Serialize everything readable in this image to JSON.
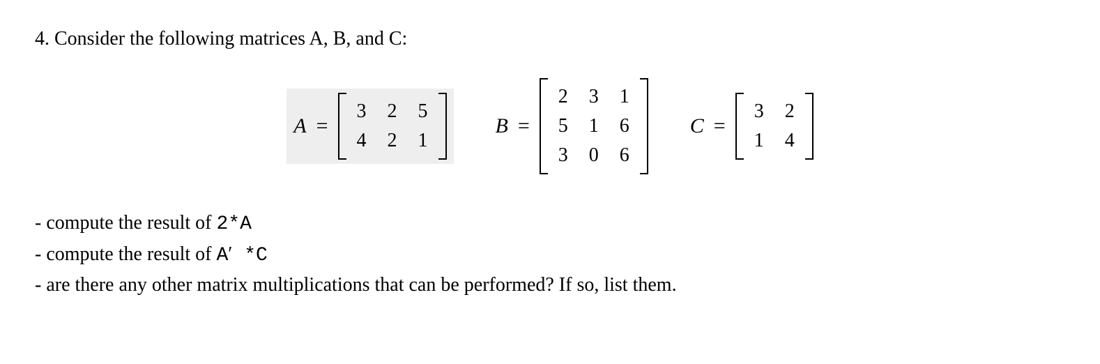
{
  "problem": {
    "number": "4.",
    "intro": "Consider the following matrices A, B, and C:"
  },
  "matrices": {
    "A": {
      "label": "A",
      "equals": "=",
      "rows": [
        [
          "3",
          "2",
          "5"
        ],
        [
          "4",
          "2",
          "1"
        ]
      ],
      "highlight_bg": "#eeeeee"
    },
    "B": {
      "label": "B",
      "equals": "=",
      "rows": [
        [
          "2",
          "3",
          "1"
        ],
        [
          "5",
          "1",
          "6"
        ],
        [
          "3",
          "0",
          "6"
        ]
      ]
    },
    "C": {
      "label": "C",
      "equals": "=",
      "rows": [
        [
          "3",
          "2"
        ],
        [
          "1",
          "4"
        ]
      ]
    }
  },
  "subquestions": {
    "q1_prefix": "- compute the result of ",
    "q1_code": "2*A",
    "q2_prefix": "- compute the result of ",
    "q2_expr_A": "A",
    "q2_expr_prime": "′",
    "q2_expr_rest": " *C",
    "q3": "- are there any other matrix multiplications that can be performed? If so, list them."
  },
  "style": {
    "text_color": "#000000",
    "background_color": "#ffffff",
    "body_fontsize": 28,
    "matrix_cell_fontsize": 28,
    "matrix_label_fontsize": 30,
    "cell_gap": 24,
    "bracket_color": "#000000",
    "bracket_thickness": 2,
    "mono_font": "Courier New"
  }
}
